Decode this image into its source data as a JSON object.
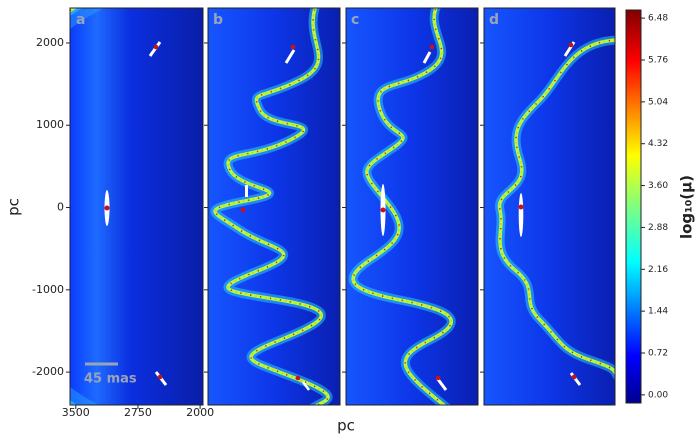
{
  "chart_data": {
    "type": "heatmap",
    "panels": [
      "a",
      "b",
      "c",
      "d"
    ],
    "ylabel": "pc",
    "xlabel": "pc",
    "scale_bar": "45 mas",
    "ylim": [
      -2400,
      2425
    ],
    "yticks": [
      2000,
      1000,
      0,
      -1000,
      -2000
    ],
    "xlim": [
      3570,
      1965
    ],
    "xticks": [
      3500,
      2750,
      2000
    ],
    "colorbar": {
      "label": "log₁₀(μ)",
      "lim": [
        -0.14,
        6.62
      ],
      "ticks": [
        6.48,
        5.76,
        5.04,
        4.32,
        {
          "value": 3.6,
          "label": "3.60"
        },
        2.88,
        2.16,
        1.44,
        0.72,
        {
          "value": 0,
          "label": "0.00"
        }
      ]
    }
  }
}
